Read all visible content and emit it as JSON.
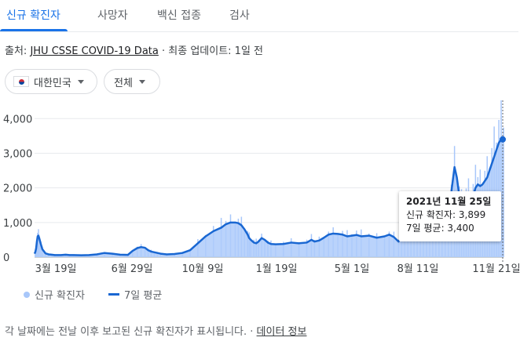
{
  "tabs": [
    {
      "label": "신규 확진자",
      "active": true
    },
    {
      "label": "사망자",
      "active": false
    },
    {
      "label": "백신 접종",
      "active": false
    },
    {
      "label": "검사",
      "active": false
    }
  ],
  "source": {
    "prefix": "출처: ",
    "link": "JHU CSSE COVID-19 Data",
    "separator": " · ",
    "updated": "최종 업데이트: 1일 전"
  },
  "filters": {
    "country": "대한민국",
    "range": "전체"
  },
  "legend": {
    "cases": "신규 확진자",
    "avg": "7일 평균"
  },
  "tooltip": {
    "date": "2021년 11월 25일",
    "cases": "신규 확진자: 3,899",
    "avg": "7일 평균: 3,400"
  },
  "footer": {
    "text": "각 날짜에는 전날 이후 보고된 신규 확진자가 표시됩니다.",
    "separator": " · ",
    "link": "데이터 정보"
  },
  "colors": {
    "accent": "#1a73e8",
    "line": "#1967d2",
    "area": "#a8c7fa"
  },
  "chart_data": {
    "type": "area",
    "x_ticks": [
      "3월 19일",
      "6월 29일",
      "10월 9일",
      "1월 19일",
      "5월 1일",
      "8월 11일",
      "11월 21일"
    ],
    "y_ticks": [
      "0",
      "1,000",
      "2,000",
      "3,000",
      "4,000"
    ],
    "ylim": [
      0,
      4300
    ],
    "series": [
      {
        "name": "7일 평균",
        "x": [
          0,
          1,
          2,
          3,
          4,
          5,
          6,
          8,
          10,
          14,
          18,
          22,
          26,
          30,
          34,
          40,
          45,
          50,
          60,
          70,
          80,
          90,
          100,
          110,
          120,
          126,
          132,
          137,
          142,
          146,
          150,
          154,
          158,
          162,
          170,
          180,
          190,
          200,
          210,
          220,
          230,
          240,
          246,
          252,
          258,
          262,
          266,
          270,
          274,
          276,
          278,
          282,
          285,
          288,
          292,
          296,
          300,
          304,
          310,
          320,
          330,
          340,
          350,
          356,
          360,
          366,
          372,
          378,
          384,
          390,
          396,
          402,
          408,
          414,
          420,
          430,
          440,
          450,
          456,
          462,
          468,
          472,
          476,
          480,
          484,
          488,
          492,
          496,
          500,
          504,
          508,
          512,
          516,
          520,
          524,
          528,
          532,
          536,
          540,
          543,
          546,
          549,
          552,
          555,
          558,
          561,
          564,
          567,
          570,
          573,
          576,
          579,
          582,
          585,
          588,
          591,
          594,
          597,
          600,
          603
        ],
        "values": [
          100,
          150,
          250,
          450,
          600,
          620,
          550,
          380,
          230,
          110,
          80,
          70,
          60,
          60,
          60,
          70,
          60,
          60,
          55,
          60,
          80,
          120,
          100,
          70,
          65,
          180,
          260,
          290,
          270,
          200,
          160,
          140,
          120,
          100,
          80,
          90,
          120,
          200,
          400,
          600,
          750,
          850,
          950,
          1000,
          1000,
          980,
          920,
          800,
          650,
          550,
          500,
          420,
          400,
          450,
          550,
          500,
          420,
          380,
          370,
          380,
          420,
          400,
          420,
          500,
          450,
          480,
          560,
          650,
          680,
          670,
          650,
          600,
          620,
          640,
          600,
          620,
          560,
          600,
          650,
          580,
          450,
          560,
          700,
          800,
          760,
          800,
          880,
          1000,
          1120,
          1120,
          1120,
          1160,
          1200,
          1250,
          1160,
          1180,
          1400,
          1900,
          2600,
          2300,
          1800,
          1550,
          1500,
          1700,
          1750,
          1700,
          1760,
          2000,
          2100,
          2050,
          2100,
          2200,
          2300,
          2500,
          2700,
          2900,
          3100,
          3300,
          3400,
          3400
        ]
      }
    ],
    "grid": true,
    "legend_position": "bottom-left"
  }
}
